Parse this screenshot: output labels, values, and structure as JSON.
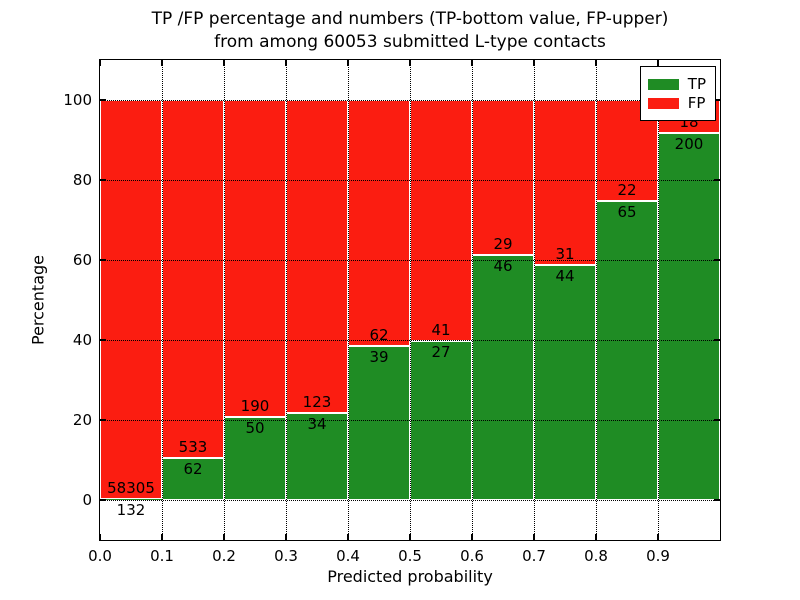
{
  "figure": {
    "title_line1": "TP /FP percentage and numbers (TP-bottom value, FP-upper)",
    "title_line2": "from among 60053 submitted L-type contacts"
  },
  "axes": {
    "xlabel": "Predicted probability",
    "ylabel": "Percentage",
    "x_tick_labels": [
      "0.0",
      "0.1",
      "0.2",
      "0.3",
      "0.4",
      "0.5",
      "0.6",
      "0.7",
      "0.8",
      "0.9"
    ],
    "x_tick_values": [
      0.0,
      0.1,
      0.2,
      0.3,
      0.4,
      0.5,
      0.6,
      0.7,
      0.8,
      0.9
    ],
    "y_tick_labels": [
      "0",
      "20",
      "40",
      "60",
      "80",
      "100"
    ],
    "y_tick_values": [
      0,
      20,
      40,
      60,
      80,
      100
    ],
    "xlim": [
      0.0,
      1.0
    ],
    "ylim": [
      -10,
      110
    ],
    "grid_style": "dotted",
    "grid_color": "#000000"
  },
  "legend": {
    "position": "upper-right",
    "items": [
      {
        "label": "TP",
        "color": "#1f8c24"
      },
      {
        "label": "FP",
        "color": "#fb1d11"
      }
    ]
  },
  "chart_data": {
    "type": "bar",
    "stacked": true,
    "unit": "percent",
    "title": "TP /FP percentage and numbers (TP-bottom value, FP-upper) from among 60053 submitted L-type contacts",
    "xlabel": "Predicted probability",
    "ylabel": "Percentage",
    "total_contacts": 60053,
    "bin_width": 0.1,
    "bin_starts": [
      0.0,
      0.1,
      0.2,
      0.3,
      0.4,
      0.5,
      0.6,
      0.7,
      0.8,
      0.9
    ],
    "categories": [
      "0.0-0.1",
      "0.1-0.2",
      "0.2-0.3",
      "0.3-0.4",
      "0.4-0.5",
      "0.5-0.6",
      "0.6-0.7",
      "0.7-0.8",
      "0.8-0.9",
      "0.9-1.0"
    ],
    "series": [
      {
        "name": "TP",
        "color": "#1f8c24",
        "counts": [
          132,
          62,
          50,
          34,
          39,
          27,
          46,
          44,
          65,
          200
        ],
        "percent": [
          0.23,
          10.42,
          20.83,
          21.66,
          38.61,
          39.71,
          61.33,
          58.67,
          74.71,
          91.74
        ]
      },
      {
        "name": "FP",
        "color": "#fb1d11",
        "counts": [
          58305,
          533,
          190,
          123,
          62,
          41,
          29,
          31,
          22,
          18
        ],
        "percent": [
          99.77,
          89.58,
          79.17,
          78.34,
          61.39,
          60.29,
          38.67,
          41.33,
          25.29,
          8.26
        ]
      }
    ],
    "ylim": [
      -10,
      110
    ],
    "grid": true,
    "legend_position": "upper-right"
  }
}
